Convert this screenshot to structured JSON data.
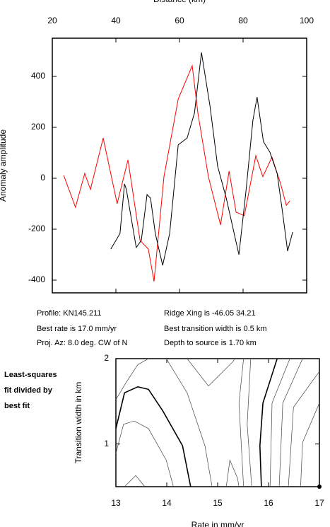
{
  "chart_data": [
    {
      "type": "line",
      "xlabel": "Distance (km)",
      "ylabel": "Anomaly amplitude",
      "xlim": [
        20,
        100
      ],
      "xticks": [
        20,
        40,
        60,
        80,
        100
      ],
      "ylim": [
        -450,
        550
      ],
      "yticks": [
        -400,
        -200,
        0,
        200,
        400
      ],
      "series": [
        {
          "color": "#ff0000",
          "x": [
            23.6,
            27.3,
            30.2,
            32,
            36,
            40.4,
            43.8,
            47.6,
            50.2,
            52,
            55.1,
            59.6,
            64,
            65.8,
            69.1,
            72.9,
            75.6,
            77.8,
            80.4,
            84,
            86.2,
            89.1,
            91.8,
            93.6,
            94.7
          ],
          "values": [
            11,
            -114,
            19,
            -44,
            158,
            -100,
            72,
            -244,
            -278,
            -405,
            6,
            311,
            442,
            255,
            6,
            -183,
            28,
            -133,
            -147,
            89,
            6,
            83,
            -22,
            -106,
            -89
          ]
        },
        {
          "color": "#000000",
          "x": [
            38.4,
            41.3,
            42.7,
            43.3,
            46.4,
            48,
            49.8,
            50.9,
            52.4,
            54.7,
            56.9,
            59.6,
            62.4,
            64.7,
            66.9,
            69.6,
            72,
            74.7,
            78.7,
            80.9,
            83.1,
            84.4,
            86.4,
            88.4,
            90.7,
            92.4,
            94,
            95.6
          ],
          "values": [
            -278,
            -217,
            -22,
            -44,
            -272,
            -244,
            -64,
            -78,
            -217,
            -342,
            -217,
            131,
            158,
            256,
            494,
            283,
            47,
            -78,
            -300,
            -50,
            228,
            319,
            144,
            103,
            19,
            -133,
            -286,
            -211
          ]
        }
      ]
    },
    {
      "type": "contour",
      "xlabel": "Rate in mm/yr",
      "ylabel": "Transition width in km",
      "annotation": [
        "Least-squares",
        "fit divided by",
        "best fit"
      ],
      "xlim": [
        13,
        17
      ],
      "xticks": [
        13,
        14,
        15,
        16,
        17
      ],
      "ylim": [
        0.5,
        2
      ],
      "yticks": [
        1,
        2
      ],
      "best_fit": {
        "x": 17,
        "y": 0.5
      },
      "contours": [
        {
          "bold": true,
          "x": [
            13,
            13.17,
            13.43,
            13.64,
            13.92,
            14.31,
            14.47
          ],
          "y": [
            1.18,
            1.6,
            1.67,
            1.64,
            1.39,
            0.98,
            0.5
          ]
        },
        {
          "bold": true,
          "x": [
            16.17,
            15.89,
            15.83,
            15.86
          ],
          "y": [
            2,
            1.48,
            0.98,
            0.5
          ]
        },
        {
          "bold": false,
          "x": [
            13,
            13.2,
            13.43,
            13.64
          ],
          "y": [
            1.52,
            1.72,
            1.93,
            2
          ]
        },
        {
          "bold": false,
          "x": [
            13,
            13.15,
            13.36,
            13.64,
            13.99,
            14.13
          ],
          "y": [
            0.89,
            1.23,
            1.27,
            1.18,
            0.81,
            0.5
          ]
        },
        {
          "bold": false,
          "x": [
            13.17,
            13.39,
            13.57
          ],
          "y": [
            0.5,
            0.63,
            0.5
          ]
        },
        {
          "bold": false,
          "x": [
            13.99,
            14.4,
            14.75,
            14.89
          ],
          "y": [
            2,
            1.6,
            0.98,
            0.5
          ]
        },
        {
          "bold": false,
          "x": [
            14.4,
            14.82,
            15.31,
            15.33
          ],
          "y": [
            2,
            1.68,
            1.97,
            2
          ]
        },
        {
          "bold": false,
          "x": [
            15.17,
            15.24,
            15.39,
            15.42
          ],
          "y": [
            0.5,
            0.81,
            0.6,
            0.5
          ]
        },
        {
          "bold": false,
          "x": [
            15.51,
            15.42,
            15.51
          ],
          "y": [
            2,
            1.48,
            0.5
          ]
        },
        {
          "bold": false,
          "x": [
            15.65,
            15.58,
            15.67
          ],
          "y": [
            2,
            1.23,
            0.5
          ]
        },
        {
          "bold": false,
          "x": [
            16.42,
            16.07,
            16.03
          ],
          "y": [
            2,
            1.48,
            0.5
          ]
        },
        {
          "bold": false,
          "x": [
            16.67,
            16.28,
            16.21
          ],
          "y": [
            2,
            1.48,
            0.5
          ]
        },
        {
          "bold": false,
          "x": [
            17,
            16.49,
            16.39
          ],
          "y": [
            1.85,
            1.43,
            0.5
          ]
        },
        {
          "bold": false,
          "x": [
            17,
            16.67,
            16.63
          ],
          "y": [
            1.48,
            1.02,
            0.5
          ]
        }
      ]
    }
  ],
  "info": {
    "profile": "Profile: KN145.211",
    "ridge": "Ridge Xing is -46.05 34.21",
    "rate": "Best rate is 17.0 mm/yr",
    "transition": "Best transition width is 0.5 km",
    "azimuth": "Proj. Az: 8.0 deg. CW of N",
    "depth": "Depth to source is   1.70 km"
  }
}
